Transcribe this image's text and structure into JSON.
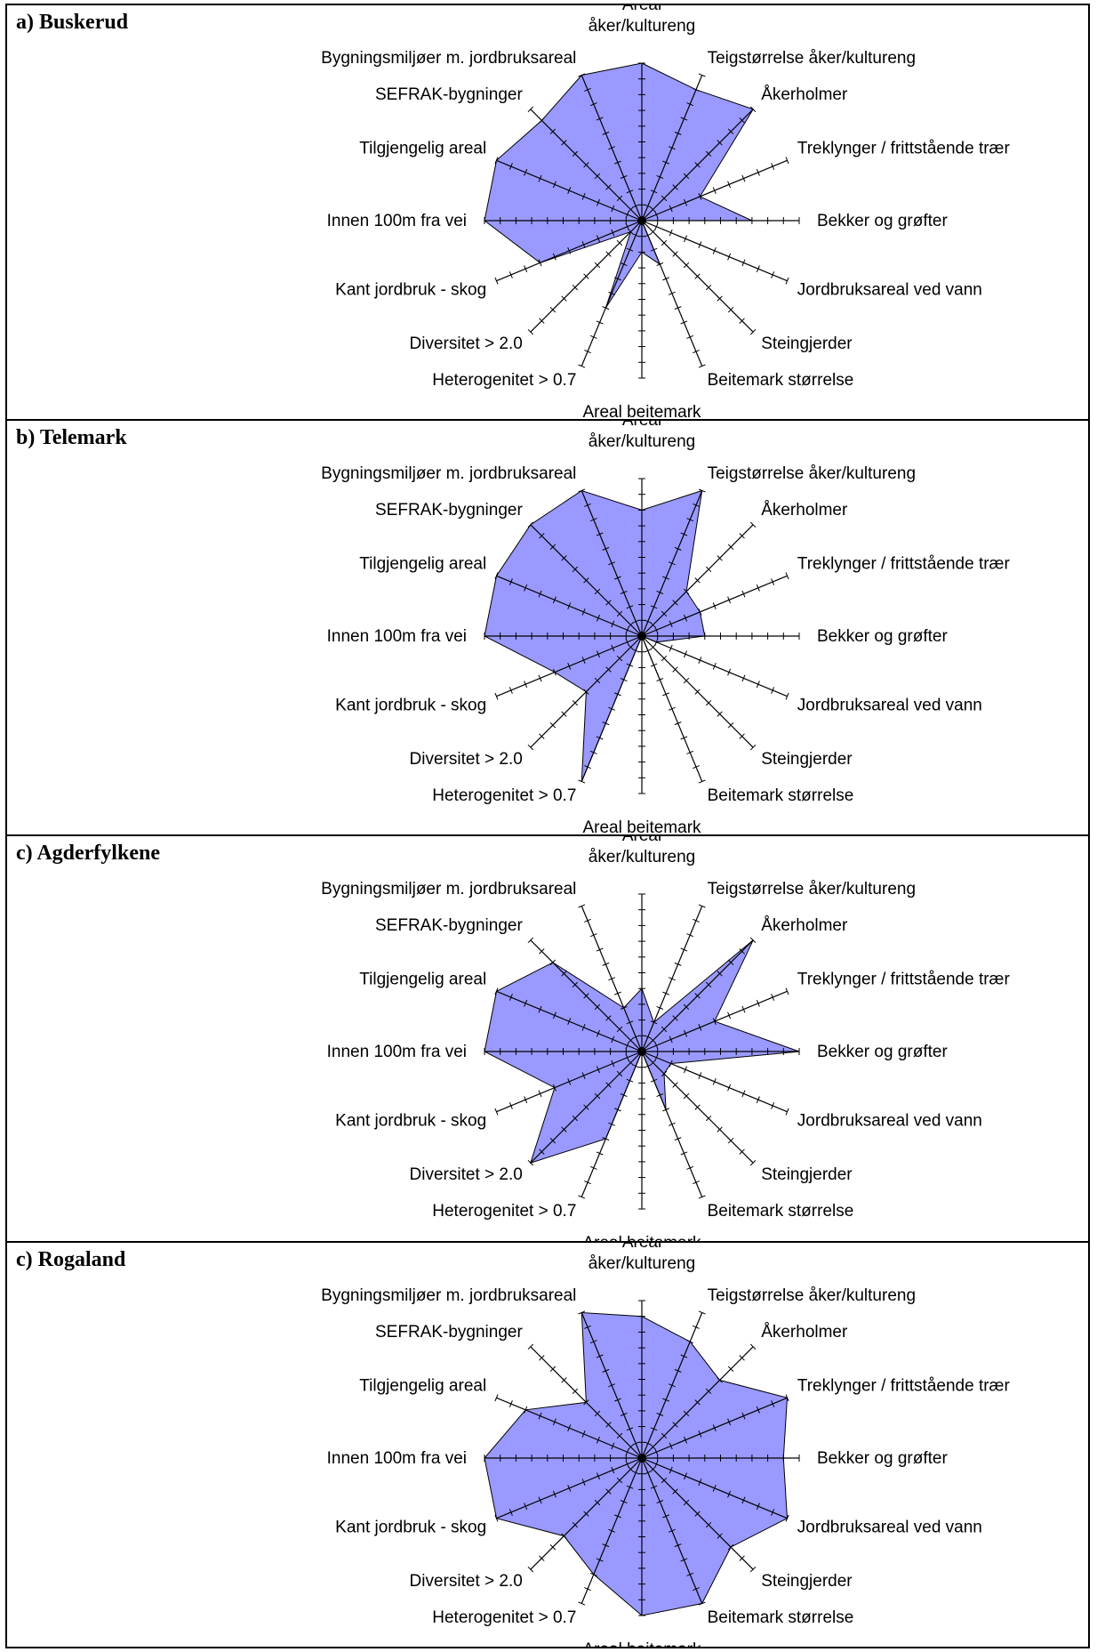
{
  "panels": [
    {
      "title": "a) Buskerud"
    },
    {
      "title": "b) Telemark"
    },
    {
      "title": "c) Agderfylkene"
    },
    {
      "title": "c) Rogaland"
    }
  ],
  "colors": {
    "fill": "#9999ff",
    "outline": "#000000",
    "axis": "#000000"
  },
  "chart_data": [
    {
      "type": "radar",
      "title": "a) Buskerud",
      "axes": [
        "Areal åker/kultureng",
        "Teigstørrelse åker/kultureng",
        "Åkerholmer",
        "Treklynger / frittstående trær",
        "Bekker og grøfter",
        "Jordbruksareal ved vann",
        "Steingjerder",
        "Beitemark størrelse",
        "Areal beitemark",
        "Heterogenitet > 0.7",
        "Diversitet > 2.0",
        "Kant jordbruk - skog",
        "Innen 100m fra vei",
        "Tilgjengelig areal",
        "SEFRAK-bygninger",
        "Bygningsmiljøer m. jordbruksareal"
      ],
      "scale_max": 10,
      "values": [
        10,
        9,
        10,
        4,
        7,
        0,
        0,
        3,
        2,
        6,
        1,
        7,
        10,
        10,
        9,
        10
      ]
    },
    {
      "type": "radar",
      "title": "b) Telemark",
      "axes": [
        "Areal åker/kultureng",
        "Teigstørrelse åker/kultureng",
        "Åkerholmer",
        "Treklynger / frittstående trær",
        "Bekker og grøfter",
        "Jordbruksareal ved vann",
        "Steingjerder",
        "Beitemark størrelse",
        "Areal beitemark",
        "Heterogenitet > 0.7",
        "Diversitet > 2.0",
        "Kant jordbruk - skog",
        "Innen 100m fra vei",
        "Tilgjengelig areal",
        "SEFRAK-bygninger",
        "Bygningsmiljøer m. jordbruksareal"
      ],
      "scale_max": 10,
      "values": [
        8,
        10,
        4,
        4,
        4,
        1,
        0,
        3,
        0,
        10,
        5,
        6,
        10,
        10,
        10,
        10
      ]
    },
    {
      "type": "radar",
      "title": "c) Agderfylkene",
      "axes": [
        "Areal åker/kultureng",
        "Teigstørrelse åker/kultureng",
        "Åkerholmer",
        "Treklynger / frittstående trær",
        "Bekker og grøfter",
        "Jordbruksareal ved vann",
        "Steingjerder",
        "Beitemark størrelse",
        "Areal beitemark",
        "Heterogenitet > 0.7",
        "Diversitet > 2.0",
        "Kant jordbruk - skog",
        "Innen 100m fra vei",
        "Tilgjengelig areal",
        "SEFRAK-bygninger",
        "Bygningsmiljøer m. jordbruksareal"
      ],
      "scale_max": 10,
      "values": [
        4,
        2,
        10,
        5,
        10,
        2,
        2,
        4,
        0,
        6,
        10,
        6,
        10,
        10,
        8,
        3
      ]
    },
    {
      "type": "radar",
      "title": "c) Rogaland",
      "axes": [
        "Areal åker/kultureng",
        "Teigstørrelse åker/kultureng",
        "Åkerholmer",
        "Treklynger / frittstående trær",
        "Bekker og grøfter",
        "Jordbruksareal ved vann",
        "Steingjerder",
        "Beitemark størrelse",
        "Areal beitemark",
        "Heterogenitet > 0.7",
        "Diversitet > 2.0",
        "Kant jordbruk - skog",
        "Innen 100m fra vei",
        "Tilgjengelig areal",
        "SEFRAK-bygninger",
        "Bygningsmiljøer m. jordbruksareal"
      ],
      "scale_max": 10,
      "values": [
        9,
        8,
        7,
        10,
        9,
        10,
        8,
        10,
        10,
        8,
        7,
        10,
        10,
        8,
        5,
        10
      ]
    }
  ]
}
